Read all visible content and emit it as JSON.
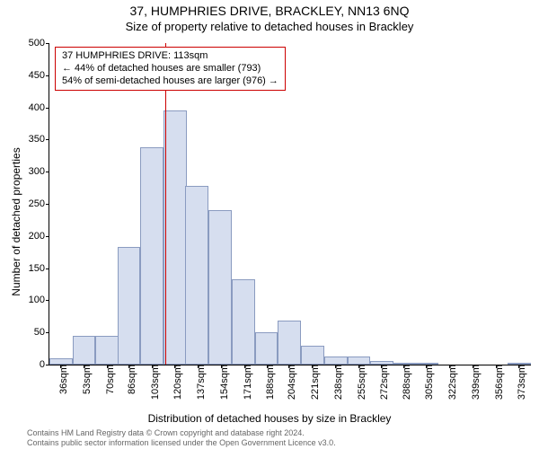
{
  "title_line1": "37, HUMPHRIES DRIVE, BRACKLEY, NN13 6NQ",
  "title_line2": "Size of property relative to detached houses in Brackley",
  "y_axis_label": "Number of detached properties",
  "x_axis_label": "Distribution of detached houses by size in Brackley",
  "footer_line1": "Contains HM Land Registry data © Crown copyright and database right 2024.",
  "footer_line2": "Contains public sector information licensed under the Open Government Licence v3.0.",
  "annotation": {
    "line1": "37 HUMPHRIES DRIVE: 113sqm",
    "line2": "← 44% of detached houses are smaller (793)",
    "line3": "54% of semi-detached houses are larger (976) →"
  },
  "chart": {
    "type": "histogram",
    "background_color": "#ffffff",
    "bar_fill": "#d6deef",
    "bar_border": "#8a9bc0",
    "marker_color": "#cc0000",
    "text_color": "#000000",
    "footer_color": "#666666",
    "title_fontsize": 14,
    "subtitle_fontsize": 13,
    "axis_label_fontsize": 12,
    "tick_fontsize": 11,
    "annotation_fontsize": 11,
    "footer_fontsize": 9,
    "ylim": [
      0,
      500
    ],
    "ytick_step": 50,
    "yticks": [
      0,
      50,
      100,
      150,
      200,
      250,
      300,
      350,
      400,
      450,
      500
    ],
    "x_min": 28,
    "x_max": 382,
    "bar_width_sqm": 17,
    "xticks": [
      36,
      53,
      70,
      86,
      103,
      120,
      137,
      154,
      171,
      188,
      204,
      221,
      238,
      255,
      272,
      288,
      305,
      322,
      339,
      356,
      373
    ],
    "xtick_suffix": "sqm",
    "marker_value_sqm": 113,
    "bars": [
      {
        "start": 28,
        "value": 10
      },
      {
        "start": 45,
        "value": 45
      },
      {
        "start": 62,
        "value": 45
      },
      {
        "start": 78,
        "value": 183
      },
      {
        "start": 95,
        "value": 338
      },
      {
        "start": 112,
        "value": 395
      },
      {
        "start": 128,
        "value": 278
      },
      {
        "start": 145,
        "value": 240
      },
      {
        "start": 162,
        "value": 133
      },
      {
        "start": 179,
        "value": 50
      },
      {
        "start": 196,
        "value": 68
      },
      {
        "start": 213,
        "value": 30
      },
      {
        "start": 230,
        "value": 12
      },
      {
        "start": 247,
        "value": 12
      },
      {
        "start": 264,
        "value": 5
      },
      {
        "start": 280,
        "value": 2
      },
      {
        "start": 297,
        "value": 3
      },
      {
        "start": 314,
        "value": 0
      },
      {
        "start": 331,
        "value": 0
      },
      {
        "start": 348,
        "value": 0
      },
      {
        "start": 365,
        "value": 3
      }
    ]
  }
}
